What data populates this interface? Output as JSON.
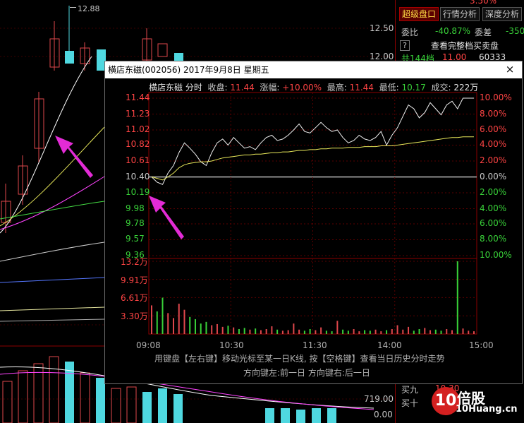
{
  "background": {
    "price_labels": [
      "12.50",
      "12.00"
    ],
    "high_marker": "12.88",
    "volume_label": "719.00",
    "volume_zero": "0.00"
  },
  "right_panel": {
    "tabs": [
      "超级盘口",
      "行情分析",
      "深度分析"
    ],
    "top_partial": "3.50%",
    "weibi_label": "委比",
    "weibi_value": "-40.87%",
    "weicha_label": "委差",
    "weicha_value": "-350",
    "question_mark": "?",
    "full_book_label": "查看完整档买卖盘",
    "row3_label": "共144档",
    "row3_price": "11.00",
    "row3_volume": "60333",
    "buy9_label": "买九",
    "buy9_price": "10.30",
    "buy10_label": "买十"
  },
  "popup": {
    "title": "横店东磁(002056) 2017年9月8日 星期五",
    "close": "×",
    "info": {
      "name": "横店东磁",
      "mode": "分时",
      "close_label": "收盘:",
      "close_value": "11.44",
      "change_label": "涨幅:",
      "change_value": "+10.00%",
      "high_label": "最高:",
      "high_value": "11.44",
      "low_label": "最低:",
      "low_value": "10.17",
      "volume_label": "成交:",
      "volume_value": "222万"
    },
    "hint1": "用键盘【左右键】移动光标至某一日K线, 按【空格键】查看当日历史分时走势",
    "hint2": "方向键左:前一日   方向键右:后一日"
  },
  "watermark": {
    "text": "10倍股",
    "site": "10Huang.cn"
  },
  "chart_data": {
    "type": "line",
    "title": "横店东磁 分时",
    "x_ticks": [
      "09:08",
      "10:30",
      "11:30",
      "14:00",
      "15:00"
    ],
    "price_ticks": [
      "11.44",
      "11.23",
      "11.02",
      "10.82",
      "10.61",
      "10.40",
      "10.19",
      "9.98",
      "9.78",
      "9.57",
      "9.36"
    ],
    "pct_ticks": [
      "10.00%",
      "8.00%",
      "6.00%",
      "4.00%",
      "2.00%",
      "0.00%",
      "2.00%",
      "4.00%",
      "6.00%",
      "8.00%",
      "10.00%"
    ],
    "volume_ticks": [
      "13.2万",
      "9.91万",
      "6.61万",
      "3.30万"
    ],
    "ylim": [
      9.36,
      11.44
    ],
    "prev_close": 10.4,
    "series": [
      {
        "name": "价格",
        "values": [
          10.4,
          10.33,
          10.3,
          10.45,
          10.55,
          10.72,
          10.85,
          10.78,
          10.7,
          10.6,
          10.55,
          10.72,
          10.85,
          10.9,
          10.82,
          10.92,
          10.85,
          10.78,
          10.8,
          10.76,
          10.85,
          10.92,
          10.95,
          10.88,
          10.9,
          10.95,
          11.02,
          11.1,
          11.0,
          10.98,
          11.05,
          11.12,
          11.05,
          11.0,
          11.02,
          10.92,
          10.85,
          10.88,
          10.95,
          10.9,
          10.88,
          10.92,
          11.0,
          10.82,
          10.95,
          11.05,
          11.2,
          11.35,
          11.3,
          11.18,
          11.25,
          11.38,
          11.3,
          11.22,
          11.35,
          11.4,
          11.3,
          11.44,
          11.44,
          11.44
        ]
      },
      {
        "name": "均价",
        "values": [
          10.4,
          10.38,
          10.36,
          10.4,
          10.45,
          10.52,
          10.56,
          10.58,
          10.59,
          10.6,
          10.6,
          10.61,
          10.63,
          10.65,
          10.66,
          10.67,
          10.68,
          10.69,
          10.69,
          10.7,
          10.7,
          10.71,
          10.72,
          10.72,
          10.73,
          10.73,
          10.74,
          10.75,
          10.75,
          10.76,
          10.76,
          10.77,
          10.77,
          10.78,
          10.78,
          10.78,
          10.79,
          10.79,
          10.79,
          10.8,
          10.8,
          10.8,
          10.81,
          10.81,
          10.81,
          10.82,
          10.83,
          10.84,
          10.85,
          10.86,
          10.87,
          10.88,
          10.89,
          10.9,
          10.91,
          10.92,
          10.92,
          10.93,
          10.93,
          10.93
        ]
      }
    ],
    "volume": [
      5.2,
      4.1,
      6.6,
      3.8,
      2.9,
      5.5,
      4.4,
      3.1,
      2.7,
      1.9,
      2.2,
      1.6,
      1.8,
      1.3,
      1.5,
      1.2,
      0.9,
      1.1,
      0.8,
      1.0,
      0.7,
      0.9,
      1.4,
      0.8,
      0.6,
      0.7,
      1.9,
      0.8,
      0.6,
      0.9,
      0.7,
      1.2,
      0.6,
      0.5,
      2.4,
      0.8,
      0.6,
      0.9,
      0.5,
      0.7,
      0.6,
      0.8,
      0.5,
      0.7,
      0.9,
      1.6,
      0.8,
      1.3,
      0.6,
      0.9,
      1.1,
      0.7,
      0.8,
      0.6,
      0.9,
      0.7,
      13.2,
      1.0,
      0.6,
      0.5
    ]
  }
}
